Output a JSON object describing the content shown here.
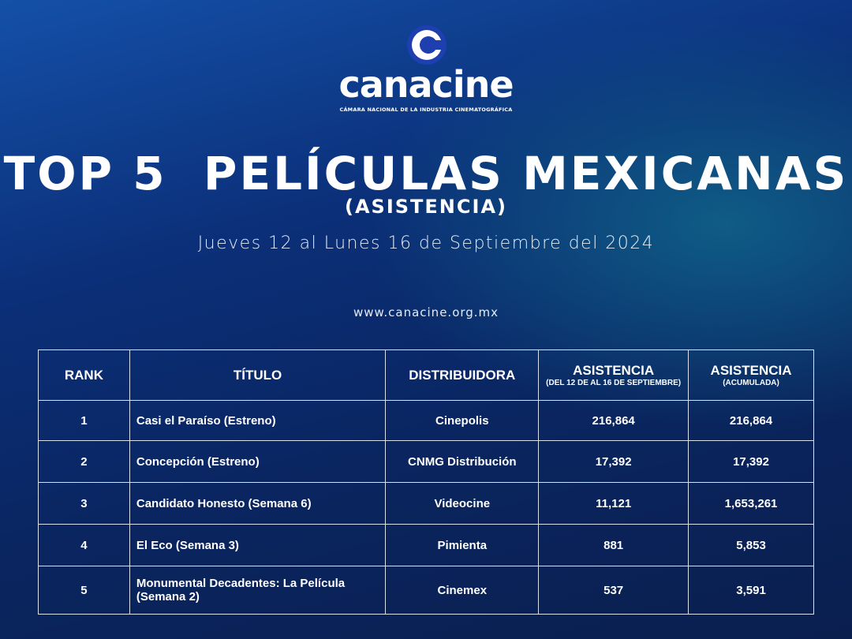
{
  "header": {
    "logo": "canacine",
    "tagline": "CÁMARA NACIONAL DE LA INDUSTRIA CINEMATOGRÁFICA",
    "title": "TOP 5  PELÍCULAS MEXICANAS",
    "subtitle": "(ASISTENCIA)",
    "date": "Jueves 12 al Lunes 16 de Septiembre del 2024",
    "url": "www.canacine.org.mx"
  },
  "table": {
    "columns": [
      {
        "label": "RANK"
      },
      {
        "label": "TÍTULO"
      },
      {
        "label": "DISTRIBUIDORA"
      },
      {
        "label": "ASISTENCIA",
        "sub": "(DEL 12 DE AL 16 DE SEPTIEMBRE)"
      },
      {
        "label": "ASISTENCIA",
        "sub": "(ACUMULADA)"
      }
    ],
    "rows": [
      [
        "1",
        "Casi el Paraíso (Estreno)",
        "Cinepolis",
        "216,864",
        "216,864"
      ],
      [
        "2",
        "Concepción (Estreno)",
        "CNMG Distribución",
        "17,392",
        "17,392"
      ],
      [
        "3",
        "Candidato Honesto (Semana 6)",
        "Videocine",
        "11,121",
        "1,653,261"
      ],
      [
        "4",
        "El Eco (Semana 3)",
        "Pimienta",
        "881",
        "5,853"
      ],
      [
        "5",
        "Monumental Decadentes: La Película (Semana 2)",
        "Cinemex",
        "537",
        "3,591"
      ]
    ]
  }
}
